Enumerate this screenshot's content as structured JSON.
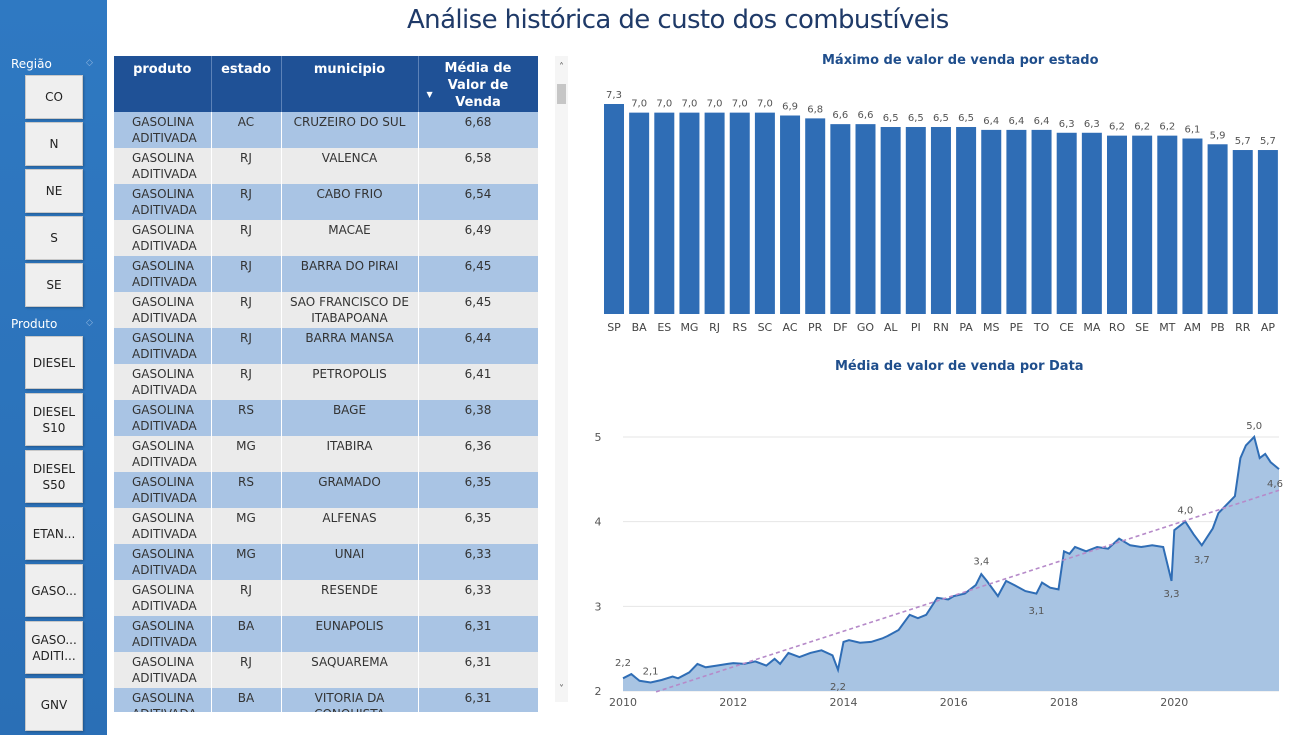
{
  "title": "Análise histórica de custo dos combustíveis",
  "sidebar": {
    "regiao_label": "Região",
    "regioes": [
      "CO",
      "N",
      "NE",
      "S",
      "SE"
    ],
    "produto_label": "Produto",
    "produtos": [
      "DIESEL",
      "DIESEL S10",
      "DIESEL S50",
      "ETAN...",
      "GASO...",
      "GASO... ADITI...",
      "GNV"
    ]
  },
  "table": {
    "columns": [
      "produto",
      "estado",
      "municipio",
      "Média de Valor de Venda"
    ],
    "rows": [
      [
        "GASOLINA ADITIVADA",
        "AC",
        "CRUZEIRO DO SUL",
        "6,68"
      ],
      [
        "GASOLINA ADITIVADA",
        "RJ",
        "VALENCA",
        "6,58"
      ],
      [
        "GASOLINA ADITIVADA",
        "RJ",
        "CABO FRIO",
        "6,54"
      ],
      [
        "GASOLINA ADITIVADA",
        "RJ",
        "MACAE",
        "6,49"
      ],
      [
        "GASOLINA ADITIVADA",
        "RJ",
        "BARRA DO PIRAI",
        "6,45"
      ],
      [
        "GASOLINA ADITIVADA",
        "RJ",
        "SAO FRANCISCO DE ITABAPOANA",
        "6,45"
      ],
      [
        "GASOLINA ADITIVADA",
        "RJ",
        "BARRA MANSA",
        "6,44"
      ],
      [
        "GASOLINA ADITIVADA",
        "RJ",
        "PETROPOLIS",
        "6,41"
      ],
      [
        "GASOLINA ADITIVADA",
        "RS",
        "BAGE",
        "6,38"
      ],
      [
        "GASOLINA ADITIVADA",
        "MG",
        "ITABIRA",
        "6,36"
      ],
      [
        "GASOLINA ADITIVADA",
        "RS",
        "GRAMADO",
        "6,35"
      ],
      [
        "GASOLINA ADITIVADA",
        "MG",
        "ALFENAS",
        "6,35"
      ],
      [
        "GASOLINA ADITIVADA",
        "MG",
        "UNAI",
        "6,33"
      ],
      [
        "GASOLINA ADITIVADA",
        "RJ",
        "RESENDE",
        "6,33"
      ],
      [
        "GASOLINA ADITIVADA",
        "BA",
        "EUNAPOLIS",
        "6,31"
      ],
      [
        "GASOLINA ADITIVADA",
        "RJ",
        "SAQUAREMA",
        "6,31"
      ],
      [
        "GASOLINA ADITIVADA",
        "BA",
        "VITORIA DA CONQUISTA",
        "6,31"
      ]
    ]
  },
  "chart_data": [
    {
      "type": "bar",
      "title": "Máximo de valor de venda por estado",
      "categories": [
        "SP",
        "BA",
        "ES",
        "MG",
        "RJ",
        "RS",
        "SC",
        "AC",
        "PR",
        "DF",
        "GO",
        "AL",
        "PI",
        "RN",
        "PA",
        "MS",
        "PE",
        "TO",
        "CE",
        "MA",
        "RO",
        "SE",
        "MT",
        "AM",
        "PB",
        "RR",
        "AP"
      ],
      "values": [
        7.3,
        7.0,
        7.0,
        7.0,
        7.0,
        7.0,
        7.0,
        6.9,
        6.8,
        6.6,
        6.6,
        6.5,
        6.5,
        6.5,
        6.5,
        6.4,
        6.4,
        6.4,
        6.3,
        6.3,
        6.2,
        6.2,
        6.2,
        6.1,
        5.9,
        5.7,
        5.7
      ],
      "data_labels": [
        "7,3",
        "7,0",
        "7,0",
        "7,0",
        "7,0",
        "7,0",
        "7,0",
        "6,9",
        "6,8",
        "6,6",
        "6,6",
        "6,5",
        "6,5",
        "6,5",
        "6,5",
        "6,4",
        "6,4",
        "6,4",
        "6,3",
        "6,3",
        "6,2",
        "6,2",
        "6,2",
        "6,1",
        "5,9",
        "5,7",
        "5,7"
      ],
      "ylim": [
        0,
        7.3
      ],
      "color": "#2f6db5"
    },
    {
      "type": "area",
      "title": "Média de valor de venda por Data",
      "x_ticks": [
        "2010",
        "2012",
        "2014",
        "2016",
        "2018",
        "2020"
      ],
      "y_ticks": [
        "2",
        "3",
        "4",
        "5"
      ],
      "ylim": [
        2,
        5.2
      ],
      "xlim": [
        2010.0,
        2021.9
      ],
      "series": [
        {
          "x": [
            2010.0,
            2010.15,
            2010.3,
            2010.5,
            2010.7,
            2010.9,
            2011.0,
            2011.2,
            2011.35,
            2011.5,
            2011.7,
            2011.9,
            2012.0,
            2012.2,
            2012.4,
            2012.6,
            2012.75,
            2012.85,
            2013.0,
            2013.2,
            2013.4,
            2013.6,
            2013.8,
            2013.9,
            2014.0,
            2014.1,
            2014.3,
            2014.5,
            2014.7,
            2014.8,
            2015.0,
            2015.2,
            2015.35,
            2015.5,
            2015.7,
            2015.9,
            2016.0,
            2016.2,
            2016.4,
            2016.5,
            2016.6,
            2016.8,
            2016.95,
            2017.1,
            2017.3,
            2017.5,
            2017.6,
            2017.75,
            2017.9,
            2018.0,
            2018.1,
            2018.2,
            2018.4,
            2018.6,
            2018.8,
            2019.0,
            2019.2,
            2019.4,
            2019.6,
            2019.8,
            2019.95,
            2020.0,
            2020.2,
            2020.35,
            2020.5,
            2020.7,
            2020.8,
            2020.95,
            2021.1,
            2021.2,
            2021.3,
            2021.45,
            2021.55,
            2021.65,
            2021.75,
            2021.9
          ],
          "y": [
            2.15,
            2.2,
            2.12,
            2.1,
            2.13,
            2.17,
            2.15,
            2.22,
            2.32,
            2.28,
            2.3,
            2.32,
            2.33,
            2.32,
            2.35,
            2.3,
            2.38,
            2.32,
            2.45,
            2.4,
            2.45,
            2.48,
            2.42,
            2.25,
            2.58,
            2.6,
            2.57,
            2.58,
            2.62,
            2.65,
            2.72,
            2.9,
            2.86,
            2.9,
            3.1,
            3.08,
            3.12,
            3.15,
            3.25,
            3.38,
            3.3,
            3.12,
            3.3,
            3.25,
            3.18,
            3.15,
            3.28,
            3.22,
            3.2,
            3.65,
            3.62,
            3.7,
            3.65,
            3.7,
            3.68,
            3.8,
            3.72,
            3.7,
            3.72,
            3.7,
            3.3,
            3.9,
            4.0,
            3.85,
            3.72,
            3.92,
            4.1,
            4.2,
            4.3,
            4.75,
            4.9,
            5.0,
            4.75,
            4.8,
            4.7,
            4.62
          ]
        }
      ],
      "trend": [
        [
          2010.6,
          1.99
        ],
        [
          2021.9,
          4.37
        ]
      ],
      "point_labels": [
        {
          "x": 2010.0,
          "y": 2.2,
          "label": "2,2"
        },
        {
          "x": 2010.5,
          "y": 2.1,
          "label": "2,1"
        },
        {
          "x": 2013.9,
          "y": 2.2,
          "label": "2,2"
        },
        {
          "x": 2016.5,
          "y": 3.4,
          "label": "3,4"
        },
        {
          "x": 2017.5,
          "y": 3.1,
          "label": "3,1"
        },
        {
          "x": 2019.95,
          "y": 3.3,
          "label": "3,3"
        },
        {
          "x": 2020.2,
          "y": 4.0,
          "label": "4,0"
        },
        {
          "x": 2020.5,
          "y": 3.7,
          "label": "3,7"
        },
        {
          "x": 2021.45,
          "y": 5.0,
          "label": "5,0"
        },
        {
          "x": 2021.9,
          "y": 4.6,
          "label": "4,6"
        }
      ],
      "line_color": "#2f6db5",
      "area_color": "#a8c4e3",
      "trend_color": "#b68ac9"
    }
  ]
}
